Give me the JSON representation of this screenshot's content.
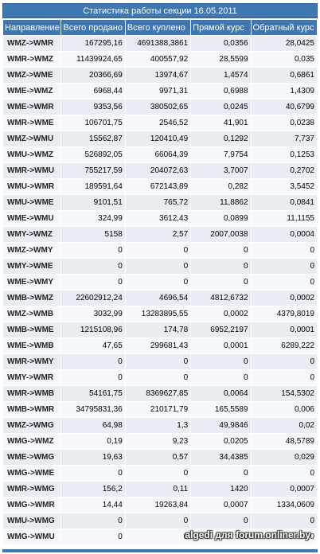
{
  "title": "Статистика работы секции 16.05.2011",
  "columns": [
    "Направление",
    "Всего продано",
    "Всего куплено",
    "Прямой курс",
    "Обратный курс"
  ],
  "rows": [
    [
      "WMZ->WMR",
      "167295,16",
      "4691388,3861",
      "0,0356",
      "28,0425"
    ],
    [
      "WMR->WMZ",
      "11439924,65",
      "400557,92",
      "28,5599",
      "0,035"
    ],
    [
      "WMZ->WME",
      "20366,69",
      "13974,67",
      "1,4574",
      "0,6861"
    ],
    [
      "WME->WMZ",
      "6968,44",
      "9971,31",
      "0,6988",
      "1,4309"
    ],
    [
      "WME->WMR",
      "9353,56",
      "380502,65",
      "0,0245",
      "40,6799"
    ],
    [
      "WMR->WME",
      "106701,75",
      "2546,52",
      "41,901",
      "0,0238"
    ],
    [
      "WMZ->WMU",
      "15562,87",
      "120410,49",
      "0,1292",
      "7,737"
    ],
    [
      "WMU->WMZ",
      "526892,05",
      "66064,39",
      "7,9754",
      "0,1253"
    ],
    [
      "WMR->WMU",
      "755217,59",
      "204072,63",
      "3,7007",
      "0,2702"
    ],
    [
      "WMU->WMR",
      "189591,64",
      "672143,89",
      "0,282",
      "3,5452"
    ],
    [
      "WMU->WME",
      "9101,51",
      "765,72",
      "11,8862",
      "0,0841"
    ],
    [
      "WME->WMU",
      "324,99",
      "3612,43",
      "0,0899",
      "11,1155"
    ],
    [
      "WMY->WMZ",
      "5158",
      "2,57",
      "2007,0038",
      "0,0004"
    ],
    [
      "WMZ->WMY",
      "0",
      "0",
      "0",
      "0"
    ],
    [
      "WMY->WME",
      "0",
      "0",
      "0",
      "0"
    ],
    [
      "WME->WMY",
      "0",
      "0",
      "0",
      "0"
    ],
    [
      "WMB->WMZ",
      "22602912,24",
      "4696,54",
      "4812,6732",
      "0,0002"
    ],
    [
      "WMZ->WMB",
      "3032,99",
      "13283895,55",
      "0,0002",
      "4379,8019"
    ],
    [
      "WMB->WME",
      "1215108,96",
      "174,78",
      "6952,2197",
      "0,0001"
    ],
    [
      "WME->WMB",
      "47,65",
      "299681,43",
      "0,0001",
      "6289,222"
    ],
    [
      "WMR->WMY",
      "0",
      "0",
      "0",
      "0"
    ],
    [
      "WMY->WMR",
      "0",
      "0",
      "0",
      "0"
    ],
    [
      "WMR->WMB",
      "54161,75",
      "8369627,85",
      "0,0064",
      "154,5302"
    ],
    [
      "WMB->WMR",
      "34795831,36",
      "210171,79",
      "165,5589",
      "0,006"
    ],
    [
      "WMZ->WMG",
      "64,98",
      "1,3",
      "49,9846",
      "0,02"
    ],
    [
      "WMG->WMZ",
      "0,19",
      "9,23",
      "0,0205",
      "48,5789"
    ],
    [
      "WME->WMG",
      "19,63",
      "0,57",
      "34,4385",
      "0,029"
    ],
    [
      "WMG->WME",
      "0",
      "0",
      "0",
      "0"
    ],
    [
      "WMR->WMG",
      "156,2",
      "0,11",
      "1420",
      "0,0007"
    ],
    [
      "WMG->WMR",
      "14,44",
      "19263,84",
      "0,0007",
      "1334,0609"
    ],
    [
      "WMU->WMG",
      "0",
      "0",
      "0",
      "0"
    ],
    [
      "WMG->WMU",
      "0",
      "0",
      "0",
      "0"
    ]
  ],
  "watermark": "algedi для forum.onliner.by"
}
